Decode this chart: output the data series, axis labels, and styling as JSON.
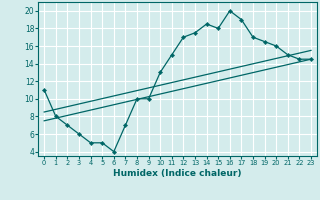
{
  "xlabel": "Humidex (Indice chaleur)",
  "ylabel": "",
  "bg_color": "#d4ecec",
  "grid_color": "#ffffff",
  "line_color": "#006666",
  "xlim": [
    -0.5,
    23.5
  ],
  "ylim": [
    3.5,
    21.0
  ],
  "xticks": [
    0,
    1,
    2,
    3,
    4,
    5,
    6,
    7,
    8,
    9,
    10,
    11,
    12,
    13,
    14,
    15,
    16,
    17,
    18,
    19,
    20,
    21,
    22,
    23
  ],
  "yticks": [
    4,
    6,
    8,
    10,
    12,
    14,
    16,
    18,
    20
  ],
  "main_line": {
    "x": [
      0,
      1,
      2,
      3,
      4,
      5,
      6,
      7,
      8,
      9,
      10,
      11,
      12,
      13,
      14,
      15,
      16,
      17,
      18,
      19,
      20,
      21,
      22,
      23
    ],
    "y": [
      11,
      8,
      7,
      6,
      5,
      5,
      4,
      7,
      10,
      10,
      13,
      15,
      17,
      17.5,
      18.5,
      18,
      20,
      19,
      17,
      16.5,
      16,
      15,
      14.5,
      14.5
    ]
  },
  "trend_line1": {
    "x": [
      0,
      23
    ],
    "y": [
      8.5,
      15.5
    ]
  },
  "trend_line2": {
    "x": [
      0,
      23
    ],
    "y": [
      7.5,
      14.5
    ]
  }
}
